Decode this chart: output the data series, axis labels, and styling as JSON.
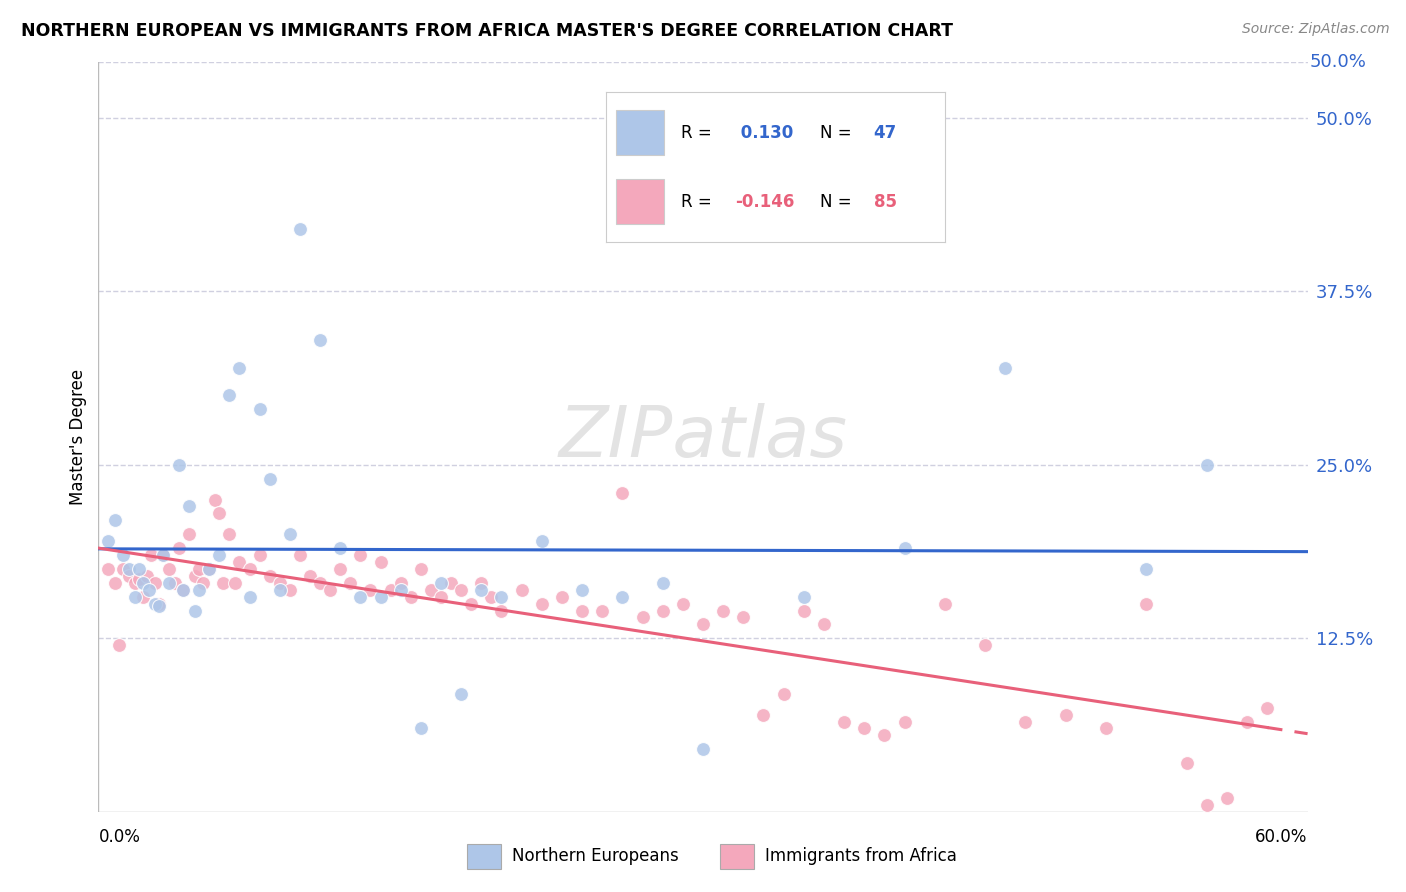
{
  "title": "NORTHERN EUROPEAN VS IMMIGRANTS FROM AFRICA MASTER'S DEGREE CORRELATION CHART",
  "source": "Source: ZipAtlas.com",
  "ylabel": "Master's Degree",
  "ytick_values": [
    0.125,
    0.25,
    0.375,
    0.5
  ],
  "ytick_labels": [
    "12.5%",
    "25.0%",
    "37.5%",
    "50.0%"
  ],
  "xlim": [
    0.0,
    0.6
  ],
  "ylim": [
    0.0,
    0.54
  ],
  "blue_R": 0.13,
  "blue_N": 47,
  "pink_R": -0.146,
  "pink_N": 85,
  "blue_scatter_color": "#aec6e8",
  "pink_scatter_color": "#f4a8bc",
  "blue_line_color": "#3366cc",
  "pink_line_color": "#e8607a",
  "background_color": "#ffffff",
  "grid_color": "#d0d0e0",
  "blue_scatter_x": [
    0.005,
    0.008,
    0.012,
    0.015,
    0.018,
    0.02,
    0.022,
    0.025,
    0.028,
    0.03,
    0.032,
    0.035,
    0.04,
    0.042,
    0.045,
    0.048,
    0.05,
    0.055,
    0.06,
    0.065,
    0.07,
    0.075,
    0.08,
    0.085,
    0.09,
    0.095,
    0.1,
    0.11,
    0.12,
    0.13,
    0.14,
    0.15,
    0.16,
    0.17,
    0.18,
    0.19,
    0.2,
    0.22,
    0.24,
    0.26,
    0.28,
    0.3,
    0.35,
    0.4,
    0.45,
    0.52,
    0.55
  ],
  "blue_scatter_y": [
    0.195,
    0.21,
    0.185,
    0.175,
    0.155,
    0.175,
    0.165,
    0.16,
    0.15,
    0.148,
    0.185,
    0.165,
    0.25,
    0.16,
    0.22,
    0.145,
    0.16,
    0.175,
    0.185,
    0.3,
    0.32,
    0.155,
    0.29,
    0.24,
    0.16,
    0.2,
    0.42,
    0.34,
    0.19,
    0.155,
    0.155,
    0.16,
    0.06,
    0.165,
    0.085,
    0.16,
    0.155,
    0.195,
    0.16,
    0.155,
    0.165,
    0.045,
    0.155,
    0.19,
    0.32,
    0.175,
    0.25
  ],
  "pink_scatter_x": [
    0.005,
    0.008,
    0.01,
    0.012,
    0.015,
    0.018,
    0.02,
    0.022,
    0.024,
    0.026,
    0.028,
    0.03,
    0.032,
    0.035,
    0.038,
    0.04,
    0.042,
    0.045,
    0.048,
    0.05,
    0.052,
    0.055,
    0.058,
    0.06,
    0.062,
    0.065,
    0.068,
    0.07,
    0.075,
    0.08,
    0.085,
    0.09,
    0.095,
    0.1,
    0.105,
    0.11,
    0.115,
    0.12,
    0.125,
    0.13,
    0.135,
    0.14,
    0.145,
    0.15,
    0.155,
    0.16,
    0.165,
    0.17,
    0.175,
    0.18,
    0.185,
    0.19,
    0.195,
    0.2,
    0.21,
    0.22,
    0.23,
    0.24,
    0.25,
    0.26,
    0.27,
    0.28,
    0.29,
    0.3,
    0.31,
    0.32,
    0.33,
    0.34,
    0.35,
    0.36,
    0.37,
    0.38,
    0.39,
    0.4,
    0.42,
    0.44,
    0.46,
    0.48,
    0.5,
    0.52,
    0.54,
    0.55,
    0.56,
    0.57,
    0.58
  ],
  "pink_scatter_y": [
    0.175,
    0.165,
    0.12,
    0.175,
    0.17,
    0.165,
    0.168,
    0.155,
    0.17,
    0.185,
    0.165,
    0.15,
    0.185,
    0.175,
    0.165,
    0.19,
    0.16,
    0.2,
    0.17,
    0.175,
    0.165,
    0.175,
    0.225,
    0.215,
    0.165,
    0.2,
    0.165,
    0.18,
    0.175,
    0.185,
    0.17,
    0.165,
    0.16,
    0.185,
    0.17,
    0.165,
    0.16,
    0.175,
    0.165,
    0.185,
    0.16,
    0.18,
    0.16,
    0.165,
    0.155,
    0.175,
    0.16,
    0.155,
    0.165,
    0.16,
    0.15,
    0.165,
    0.155,
    0.145,
    0.16,
    0.15,
    0.155,
    0.145,
    0.145,
    0.23,
    0.14,
    0.145,
    0.15,
    0.135,
    0.145,
    0.14,
    0.07,
    0.085,
    0.145,
    0.135,
    0.065,
    0.06,
    0.055,
    0.065,
    0.15,
    0.12,
    0.065,
    0.07,
    0.06,
    0.15,
    0.035,
    0.005,
    0.01,
    0.065,
    0.075
  ]
}
